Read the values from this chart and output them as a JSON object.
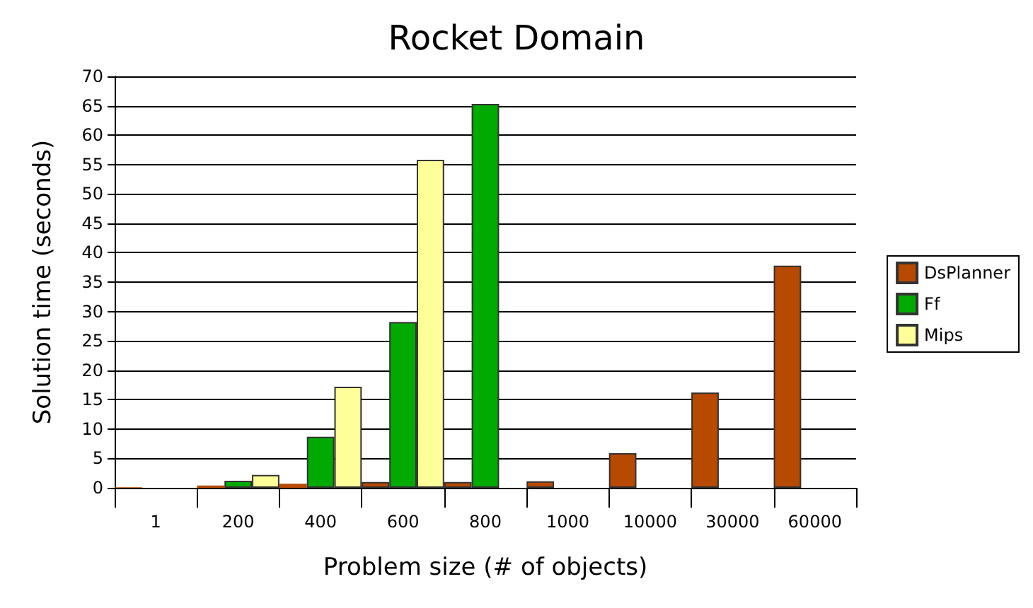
{
  "chart_data": {
    "type": "bar",
    "title": "Rocket Domain",
    "xlabel": "Problem size (# of objects)",
    "ylabel": "Solution time (seconds)",
    "categories": [
      "1",
      "200",
      "400",
      "600",
      "800",
      "1000",
      "10000",
      "30000",
      "60000"
    ],
    "series": [
      {
        "name": "DsPlanner",
        "color": "#b84a00",
        "values": [
          0.1,
          0.4,
          0.7,
          1.0,
          1.0,
          1.1,
          5.9,
          16.2,
          37.8
        ]
      },
      {
        "name": "Ff",
        "color": "#00aa00",
        "values": [
          null,
          1.2,
          8.7,
          28.2,
          65.3,
          null,
          null,
          null,
          null
        ]
      },
      {
        "name": "Mips",
        "color": "#ffff99",
        "values": [
          null,
          2.2,
          17.2,
          55.8,
          null,
          null,
          null,
          null,
          null
        ]
      }
    ],
    "ylim": [
      0,
      70
    ],
    "yticks": [
      0,
      5,
      10,
      15,
      20,
      25,
      30,
      35,
      40,
      45,
      50,
      55,
      60,
      65,
      70
    ],
    "grid": "y",
    "legend": "right"
  }
}
